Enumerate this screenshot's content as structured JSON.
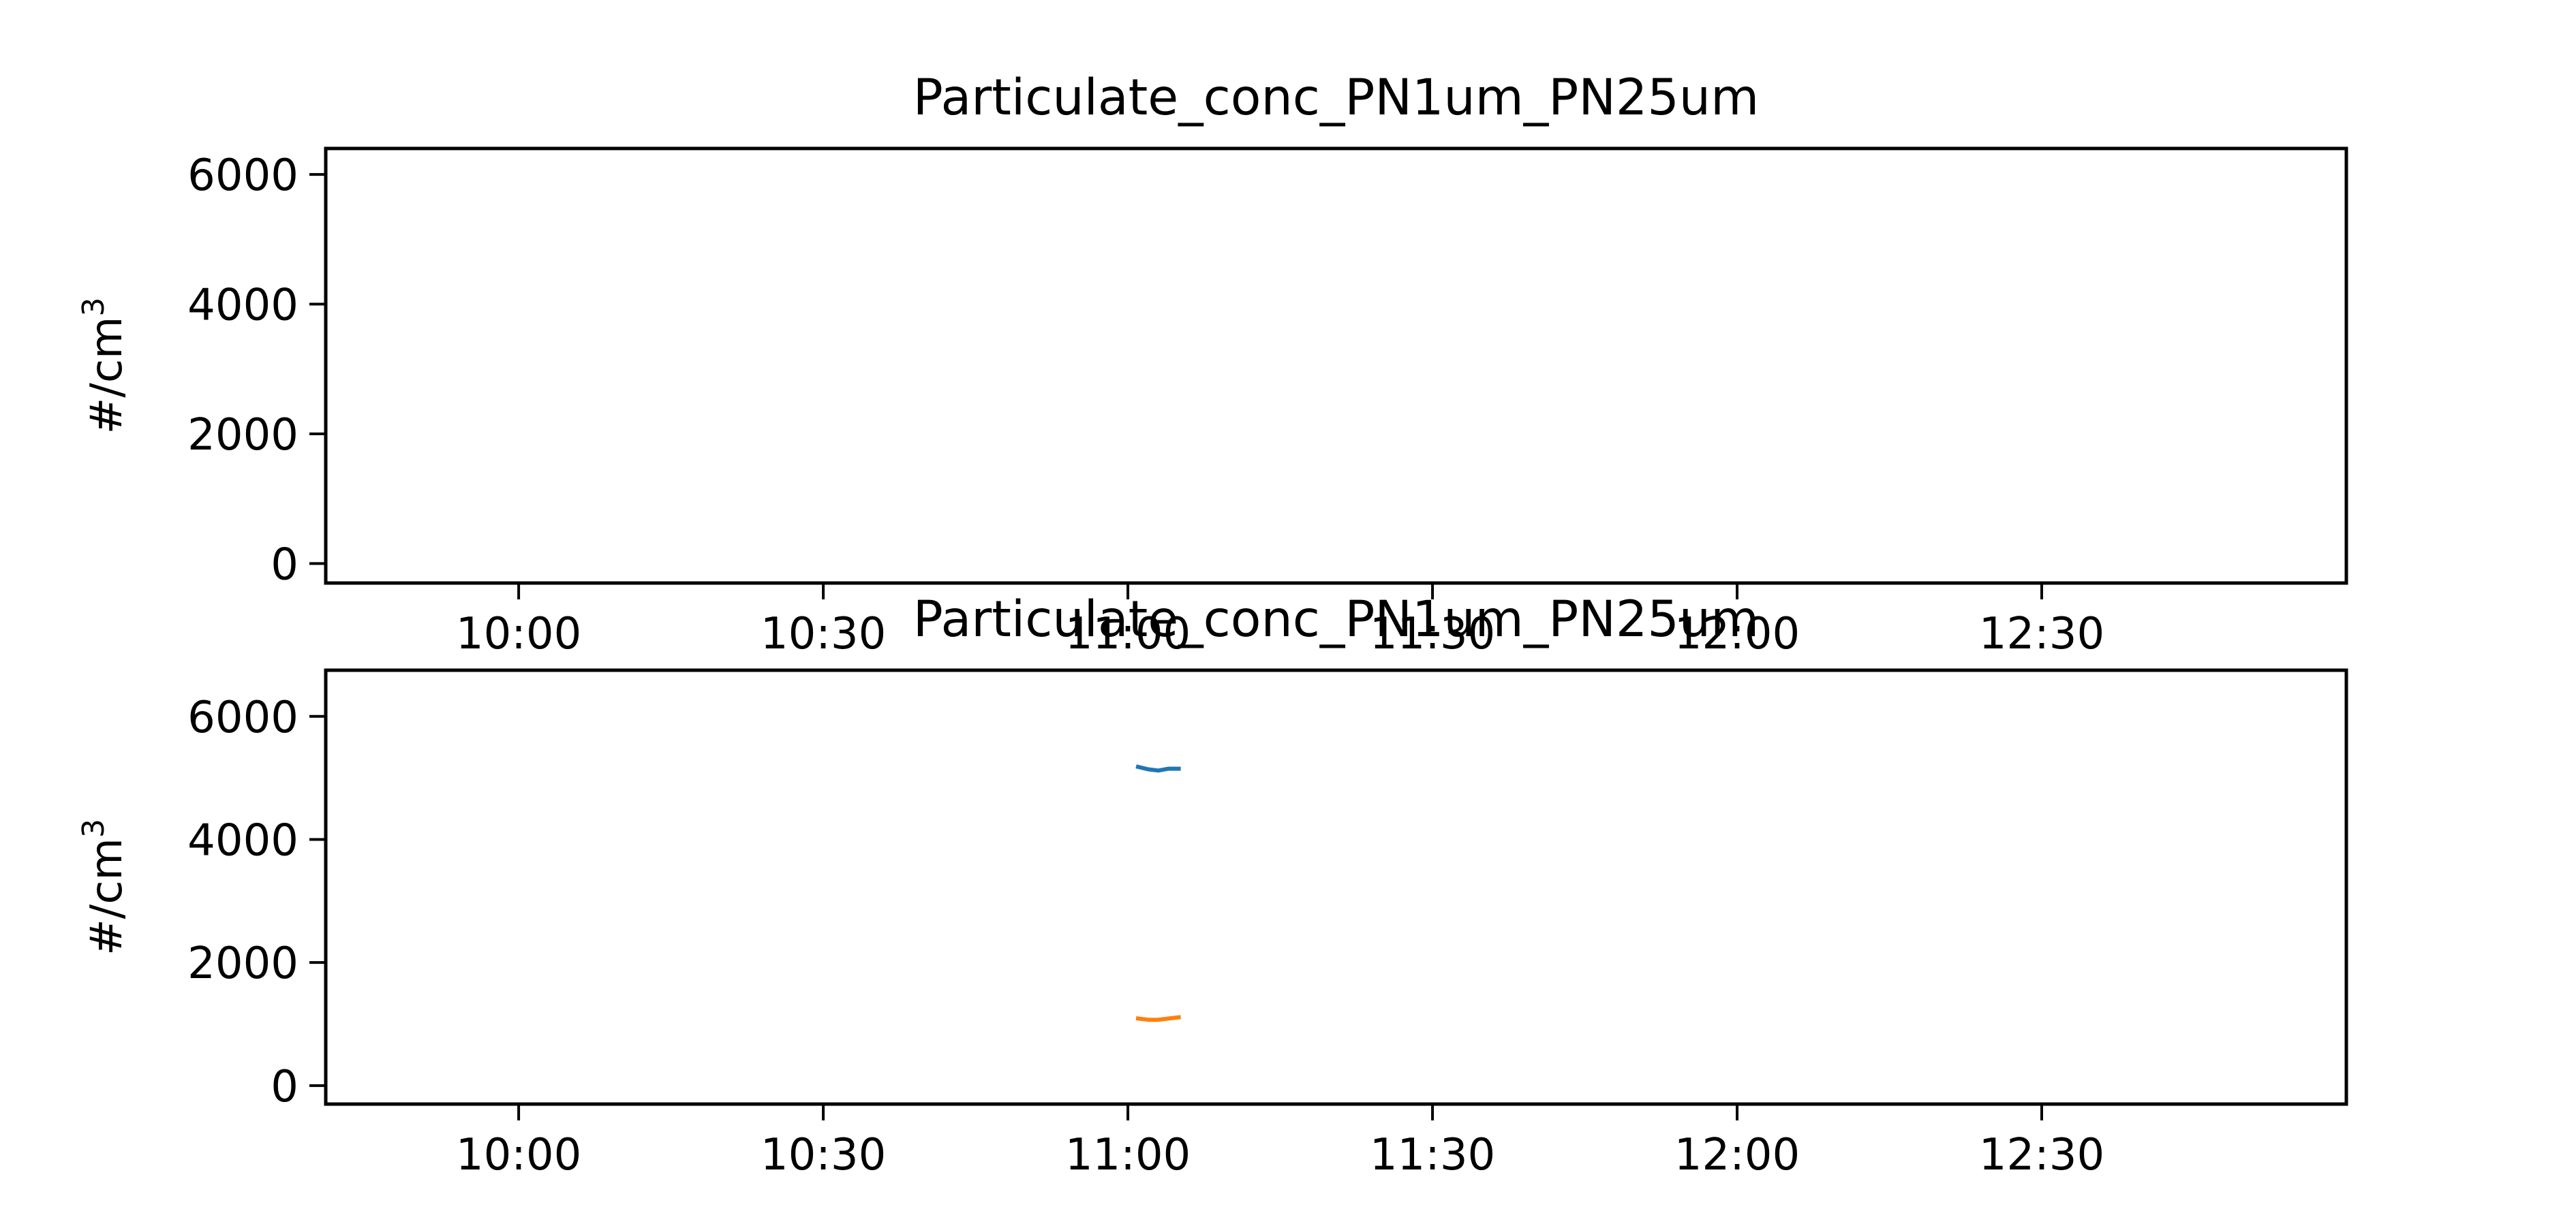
{
  "chart_data": [
    {
      "type": "line",
      "title": "Particulate_conc_PN1um_PN25um",
      "ylabel": "#/cm³",
      "ylabel_base": "#/cm",
      "ylabel_sup": "3",
      "x_axis": "time",
      "xlim": [
        "09:41",
        "13:00"
      ],
      "ylim": [
        -300,
        6400
      ],
      "xticks": [
        "10:00",
        "10:30",
        "11:00",
        "11:30",
        "12:00",
        "12:30"
      ],
      "yticks": [
        0,
        2000,
        4000,
        6000
      ],
      "grid": false,
      "series": []
    },
    {
      "type": "line",
      "title": "Particulate_conc_PN1um_PN25um",
      "ylabel": "#/cm³",
      "ylabel_base": "#/cm",
      "ylabel_sup": "3",
      "x_axis": "time",
      "xlim": [
        "09:41",
        "13:00"
      ],
      "ylim": [
        -300,
        6750
      ],
      "xticks": [
        "10:00",
        "10:30",
        "11:00",
        "11:30",
        "12:00",
        "12:30"
      ],
      "yticks": [
        0,
        2000,
        4000,
        6000
      ],
      "grid": false,
      "series": [
        {
          "color": "#1f77b4",
          "x": [
            "11:01",
            "11:02",
            "11:03",
            "11:04",
            "11:05"
          ],
          "y": [
            5180,
            5140,
            5120,
            5150,
            5150
          ]
        },
        {
          "color": "#ff7f0e",
          "x": [
            "11:01",
            "11:02",
            "11:03",
            "11:04",
            "11:05"
          ],
          "y": [
            1090,
            1070,
            1070,
            1090,
            1110
          ]
        }
      ]
    }
  ]
}
